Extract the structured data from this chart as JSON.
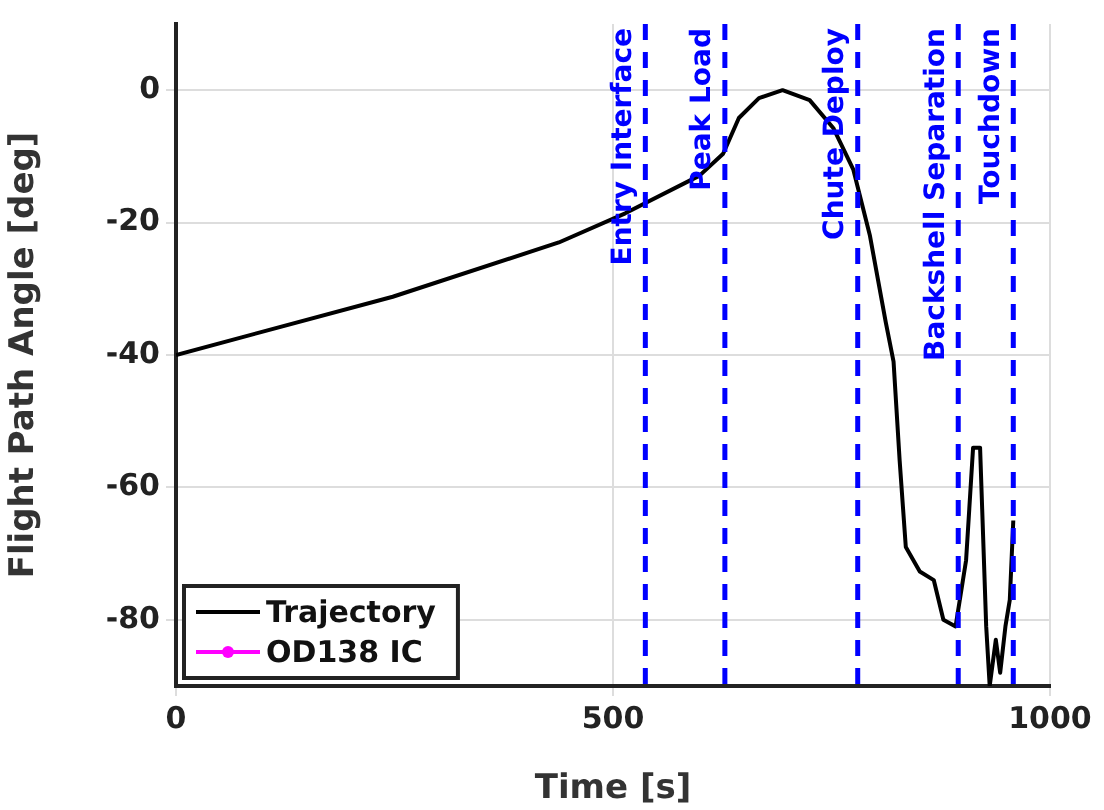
{
  "chart_data": {
    "type": "line",
    "xlabel": "Time [s]",
    "ylabel": "Flight Path Angle [deg]",
    "xlim": [
      0,
      1000
    ],
    "xticks": [
      0,
      500,
      1000
    ],
    "ylim": [
      -90,
      10
    ],
    "yticks": [
      -80,
      -60,
      -40,
      -20,
      0
    ],
    "grid": true,
    "legend": "bottom left",
    "marker": "none",
    "line_style": "solid",
    "series": [
      {
        "name": "Trajectory",
        "color": "#000000",
        "x": [
          0,
          248,
          438,
          514,
          599,
          626,
          644,
          667,
          694,
          725,
          752,
          775,
          794,
          812,
          821,
          828,
          835,
          851,
          867,
          878,
          892,
          904,
          912,
          920,
          927,
          931,
          938,
          943,
          949,
          954,
          958
        ],
        "values": [
          -40,
          -31.2,
          -23,
          -18.6,
          -12.9,
          -9.6,
          -4.2,
          -1.2,
          0,
          -1.5,
          -5.7,
          -12,
          -22,
          -35,
          -41,
          -56,
          -69,
          -72.7,
          -74,
          -80,
          -81,
          -71,
          -54,
          -54,
          -81,
          -90,
          -83,
          -88,
          -81,
          -77,
          -65
        ]
      },
      {
        "name": "OD138 IC",
        "color": "#ff00ff",
        "marker": "circle"
      }
    ],
    "ref_lines": [
      {
        "axis": "x",
        "value": 537,
        "label": "Entry Interface",
        "color": "#0000ff",
        "line_style": "dashed"
      },
      {
        "axis": "x",
        "value": 628,
        "label": "Peak Load",
        "color": "#0000ff",
        "line_style": "dashed"
      },
      {
        "axis": "x",
        "value": 780,
        "label": "Chute Deploy",
        "color": "#0000ff",
        "line_style": "dashed"
      },
      {
        "axis": "x",
        "value": 895,
        "label": "Backshell Separation",
        "color": "#0000ff",
        "line_style": "dashed"
      },
      {
        "axis": "x",
        "value": 958,
        "label": "Touchdown",
        "color": "#0000ff",
        "line_style": "dashed"
      }
    ]
  }
}
